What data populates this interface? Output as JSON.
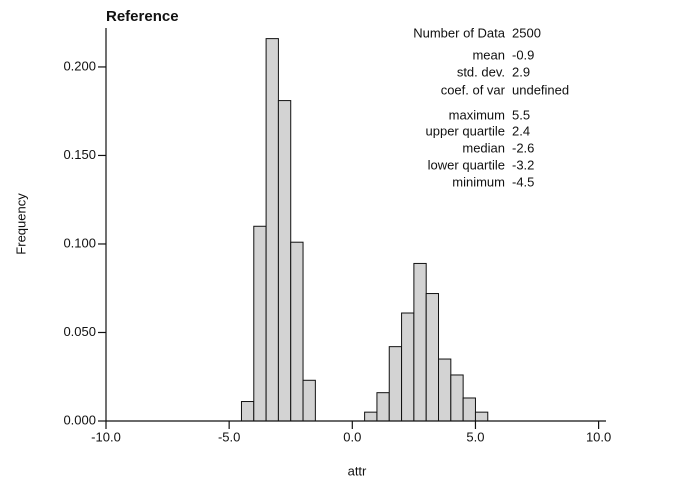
{
  "chart_data": {
    "type": "histogram",
    "title": "Reference",
    "x_label": "attr",
    "y_label": "Frequency",
    "bins": [
      -4.5,
      -4.0,
      -3.5,
      -3.0,
      -2.5,
      -2.0,
      -1.5,
      -1.0,
      -0.5,
      0.0,
      0.5,
      1.0,
      1.5,
      2.0,
      2.5,
      3.0,
      3.5,
      4.0,
      4.5,
      5.0,
      5.5
    ],
    "counts": [
      0.011,
      0.11,
      0.216,
      0.181,
      0.101,
      0.023,
      0,
      0,
      0,
      0,
      0.005,
      0.016,
      0.042,
      0.061,
      0.089,
      0.072,
      0.035,
      0.026,
      0.013,
      0.005
    ],
    "color": "#d3d3d3",
    "xlim": [
      -10,
      10.3
    ],
    "ylim": [
      0,
      0.222
    ],
    "xticks": [
      {
        "value": -10,
        "label": "-10.0"
      },
      {
        "value": -5,
        "label": "-5.0"
      },
      {
        "value": 0,
        "label": "0.0"
      },
      {
        "value": 5,
        "label": "5.0"
      },
      {
        "value": 10,
        "label": "10.0"
      }
    ],
    "yticks": [
      {
        "value": 0,
        "label": "0.000"
      },
      {
        "value": 0.05,
        "label": "0.050"
      },
      {
        "value": 0.1,
        "label": "0.100"
      },
      {
        "value": 0.15,
        "label": "0.150"
      },
      {
        "value": 0.2,
        "label": "0.200"
      }
    ],
    "stats": [
      {
        "label": "Number of Data",
        "value": "2500"
      },
      {
        "label": "mean",
        "value": "-0.9"
      },
      {
        "label": "std. dev.",
        "value": "2.9"
      },
      {
        "label": "coef. of var",
        "value": "undefined"
      },
      {
        "label": "maximum",
        "value": "5.5"
      },
      {
        "label": "upper quartile",
        "value": "2.4"
      },
      {
        "label": "median",
        "value": "-2.6"
      },
      {
        "label": "lower quartile",
        "value": "-3.2"
      },
      {
        "label": "minimum",
        "value": "-4.5"
      }
    ]
  }
}
